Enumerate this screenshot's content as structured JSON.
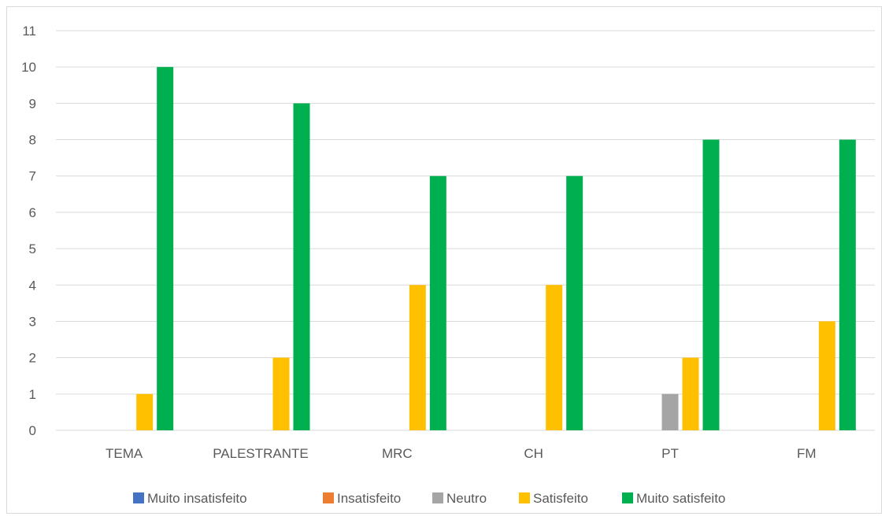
{
  "chart_data": {
    "type": "bar",
    "categories": [
      "TEMA",
      "PALESTRANTE",
      "MRC",
      "CH",
      "PT",
      "FM"
    ],
    "series": [
      {
        "name": "Muito insatisfeito",
        "color": "#4472c4",
        "values": [
          0,
          0,
          0,
          0,
          0,
          0
        ]
      },
      {
        "name": "Insatisfeito",
        "color": "#ed7d31",
        "values": [
          0,
          0,
          0,
          0,
          0,
          0
        ]
      },
      {
        "name": "Neutro",
        "color": "#a5a5a5",
        "values": [
          0,
          0,
          0,
          0,
          1,
          0
        ]
      },
      {
        "name": "Satisfeito",
        "color": "#ffc000",
        "values": [
          1,
          2,
          4,
          4,
          2,
          3
        ]
      },
      {
        "name": "Muito satisfeito",
        "color": "#00b050",
        "values": [
          10,
          9,
          7,
          7,
          8,
          8
        ]
      }
    ],
    "ylim": [
      0,
      11
    ],
    "yticks": [
      0,
      1,
      2,
      3,
      4,
      5,
      6,
      7,
      8,
      9,
      10,
      11
    ],
    "grid": true,
    "legend": "bottom"
  }
}
